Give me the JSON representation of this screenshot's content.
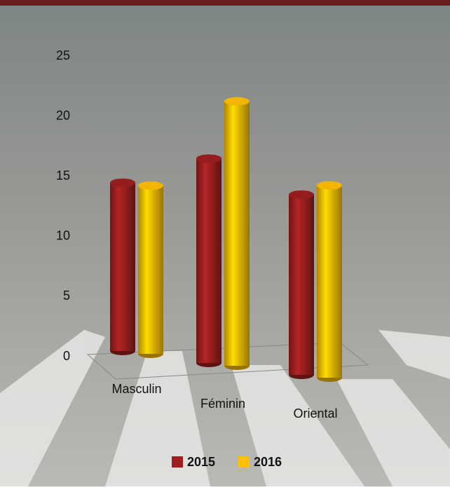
{
  "chart_data": {
    "type": "bar3d",
    "categories": [
      "Masculin",
      "Féminin",
      "Oriental"
    ],
    "series": [
      {
        "name": "2015",
        "color": "#9e1f1f",
        "values": [
          14,
          17,
          15
        ]
      },
      {
        "name": "2016",
        "color": "#ffc000",
        "values": [
          14,
          22,
          16
        ]
      }
    ],
    "ylim": [
      0,
      25
    ],
    "yticks": [
      0,
      5,
      10,
      15,
      20,
      25
    ],
    "grid": false,
    "legend": "bottom"
  }
}
